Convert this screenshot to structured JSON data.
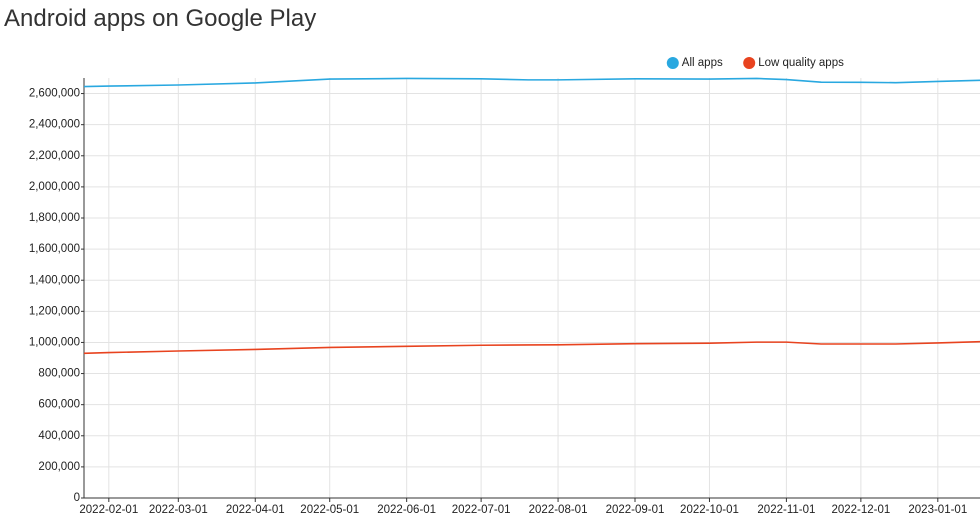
{
  "chart_data": {
    "type": "line",
    "title": "Android apps on Google Play",
    "x": [
      "2022-01-22",
      "2022-02-01",
      "2022-03-01",
      "2022-04-01",
      "2022-05-01",
      "2022-06-01",
      "2022-07-01",
      "2022-07-20",
      "2022-08-01",
      "2022-09-01",
      "2022-10-01",
      "2022-10-20",
      "2022-11-01",
      "2022-11-15",
      "2022-12-01",
      "2022-12-15",
      "2023-01-01",
      "2023-01-18"
    ],
    "series": [
      {
        "name": "All apps",
        "color": "#29a8e0",
        "values": [
          2645000,
          2648000,
          2655000,
          2668000,
          2693000,
          2697000,
          2695000,
          2688000,
          2688000,
          2695000,
          2693000,
          2697000,
          2690000,
          2673000,
          2672000,
          2670000,
          2678000,
          2685000
        ]
      },
      {
        "name": "Low quality apps",
        "color": "#e8431f",
        "values": [
          930000,
          935000,
          945000,
          955000,
          968000,
          975000,
          982000,
          984000,
          985000,
          992000,
          995000,
          1002000,
          1002000,
          990000,
          990000,
          990000,
          997000,
          1005000
        ]
      }
    ],
    "xlim": [
      "2022-01-22",
      "2023-01-18"
    ],
    "xticks": [
      "2022-02-01",
      "2022-03-01",
      "2022-04-01",
      "2022-05-01",
      "2022-06-01",
      "2022-07-01",
      "2022-08-01",
      "2022-09-01",
      "2022-10-01",
      "2022-11-01",
      "2022-12-01",
      "2023-01-01"
    ],
    "ylim": [
      0,
      2700000
    ],
    "yticks": [
      0,
      {
        "value": 200000,
        "label": "200,000"
      },
      {
        "value": 400000,
        "label": "400,000"
      },
      {
        "value": 600000,
        "label": "600,000"
      },
      {
        "value": 800000,
        "label": "800,000"
      },
      {
        "value": 1000000,
        "label": "1,000,000"
      },
      {
        "value": 1200000,
        "label": "1,200,000"
      },
      {
        "value": 1400000,
        "label": "1,400,000"
      },
      {
        "value": 1600000,
        "label": "1,600,000"
      },
      {
        "value": 1800000,
        "label": "1,800,000"
      },
      {
        "value": 2000000,
        "label": "2,000,000"
      },
      {
        "value": 2200000,
        "label": "2,200,000"
      },
      {
        "value": 2400000,
        "label": "2,400,000"
      },
      {
        "value": 2600000,
        "label": "2,600,000"
      }
    ],
    "grid": true,
    "legend": "top-right"
  }
}
